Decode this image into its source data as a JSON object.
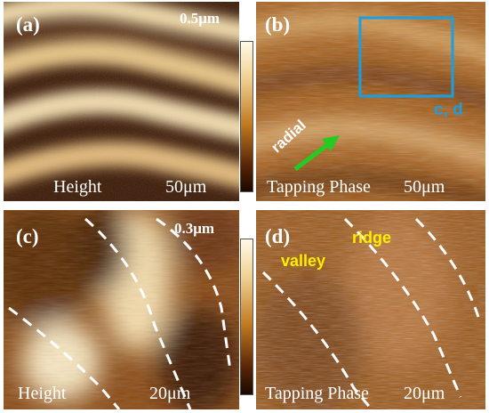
{
  "panels": [
    {
      "id": "a",
      "letter": "(a)",
      "scale_top": "0.5μm",
      "mode": "Height",
      "scale": "50μm"
    },
    {
      "id": "b",
      "letter": "(b)",
      "mode": "Tapping Phase",
      "scale": "50μm",
      "roi_label": "c, d",
      "arrow_label": "radial"
    },
    {
      "id": "c",
      "letter": "(c)",
      "scale_top": "0.3μm",
      "mode": "Height",
      "scale": "20μm"
    },
    {
      "id": "d",
      "letter": "(d)",
      "mode": "Tapping Phase",
      "scale": "20μm",
      "ridge_label": "ridge",
      "valley_label": "valley"
    }
  ],
  "colors": {
    "colorbar_top": "#fffbe8",
    "colorbar_mid": "#c07a22",
    "colorbar_bottom": "#1a0800",
    "roi_box": "#1aa0e0",
    "roi_label": "#1aa0e0",
    "arrow": "#22cc22",
    "feature_label": "#ffee00",
    "dashed_line": "#ffffff"
  }
}
